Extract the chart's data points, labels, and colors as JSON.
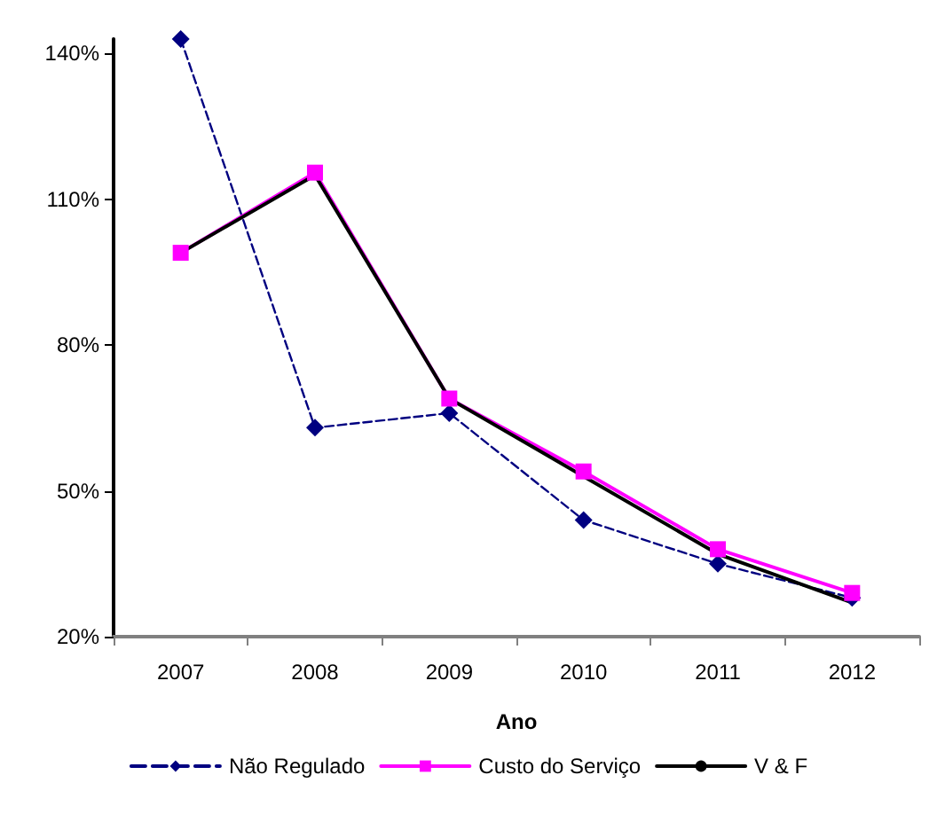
{
  "chart_data": {
    "type": "line",
    "xlabel": "Ano",
    "categories": [
      "2007",
      "2008",
      "2009",
      "2010",
      "2011",
      "2012"
    ],
    "series": [
      {
        "name": "Não Regulado",
        "color": "#000080",
        "marker": "diamond",
        "line_style": "dashed",
        "values": [
          143,
          63,
          66,
          44,
          35,
          28
        ]
      },
      {
        "name": "Custo do Serviço",
        "color": "#ff00ff",
        "marker": "square",
        "line_style": "solid",
        "values": [
          99,
          115.5,
          69,
          54,
          38,
          29
        ]
      },
      {
        "name": "V & F",
        "color": "#000000",
        "marker": "none",
        "line_style": "solid",
        "values": [
          99,
          115,
          69,
          53,
          37,
          27
        ]
      }
    ],
    "ylim": [
      20,
      143
    ],
    "yticks": [
      {
        "value": 20,
        "label": "20%"
      },
      {
        "value": 50,
        "label": "50%"
      },
      {
        "value": 80,
        "label": "80%"
      },
      {
        "value": 110,
        "label": "110%"
      },
      {
        "value": 140,
        "label": "140%"
      }
    ],
    "grid": false,
    "legend": "bottom"
  }
}
